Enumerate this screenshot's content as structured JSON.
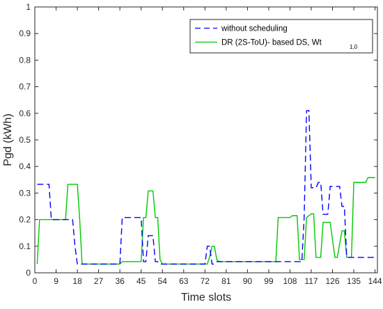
{
  "chart_data": {
    "type": "line",
    "title": "",
    "xlabel": "Time slots",
    "ylabel": "Pgd (kWh)",
    "xlim": [
      0,
      145
    ],
    "ylim": [
      0,
      1
    ],
    "xticks": [
      0,
      9,
      18,
      27,
      36,
      45,
      54,
      63,
      72,
      81,
      90,
      99,
      108,
      117,
      126,
      135,
      144
    ],
    "yticks": [
      0,
      0.1,
      0.2,
      0.3,
      0.4,
      0.5,
      0.6,
      0.7,
      0.8,
      0.9,
      1
    ],
    "ytick_labels": [
      "0",
      "0.1",
      "0.2",
      "0.3",
      "0.4",
      "0.5",
      "0.6",
      "0.7",
      "0.8",
      "0.9",
      "1"
    ],
    "grid": false,
    "legend_position": "top-right",
    "series": [
      {
        "name": "without scheduling",
        "color": "#0000ff",
        "style": "dashed",
        "x": [
          1,
          6,
          7,
          16,
          17,
          18,
          19,
          36,
          37,
          45,
          46,
          47,
          48,
          50,
          51,
          52,
          53,
          72,
          73,
          74,
          75,
          76,
          77,
          78,
          79,
          113,
          114,
          115,
          116,
          117,
          118,
          119,
          120,
          121,
          122,
          124,
          125,
          126,
          127,
          129,
          130,
          131,
          132,
          133,
          144
        ],
        "y": [
          0.333,
          0.333,
          0.2,
          0.2,
          0.1,
          0.033,
          0.033,
          0.033,
          0.208,
          0.208,
          0.042,
          0.042,
          0.14,
          0.14,
          0.042,
          0.042,
          0.033,
          0.033,
          0.1,
          0.1,
          0.033,
          0.033,
          0.042,
          0.042,
          0.042,
          0.042,
          0.21,
          0.61,
          0.61,
          0.32,
          0.32,
          0.32,
          0.34,
          0.34,
          0.22,
          0.22,
          0.325,
          0.325,
          0.325,
          0.325,
          0.25,
          0.25,
          0.06,
          0.058,
          0.058
        ]
      },
      {
        "name": "DR (2S-ToU)- based DS, Wt",
        "name_subscript": "1,0",
        "color": "#00c800",
        "style": "solid",
        "x": [
          1,
          2,
          13,
          14,
          18,
          19,
          20,
          36,
          37,
          45,
          46,
          47,
          48,
          50,
          51,
          52,
          53,
          54,
          55,
          73,
          74,
          75,
          76,
          77,
          78,
          79,
          102,
          103,
          108,
          109,
          111,
          112,
          114,
          115,
          117,
          118,
          119,
          121,
          122,
          123,
          124,
          125,
          127,
          128,
          130,
          131,
          132,
          134,
          135,
          139,
          140,
          141,
          144
        ],
        "y": [
          0.033,
          0.2,
          0.2,
          0.333,
          0.333,
          0.2,
          0.033,
          0.033,
          0.042,
          0.042,
          0.208,
          0.208,
          0.308,
          0.308,
          0.208,
          0.208,
          0.05,
          0.033,
          0.033,
          0.033,
          0.06,
          0.1,
          0.1,
          0.05,
          0.042,
          0.042,
          0.042,
          0.208,
          0.208,
          0.215,
          0.215,
          0.05,
          0.05,
          0.208,
          0.222,
          0.222,
          0.058,
          0.058,
          0.19,
          0.19,
          0.19,
          0.19,
          0.058,
          0.058,
          0.158,
          0.158,
          0.058,
          0.058,
          0.34,
          0.34,
          0.34,
          0.358,
          0.358
        ]
      }
    ]
  }
}
